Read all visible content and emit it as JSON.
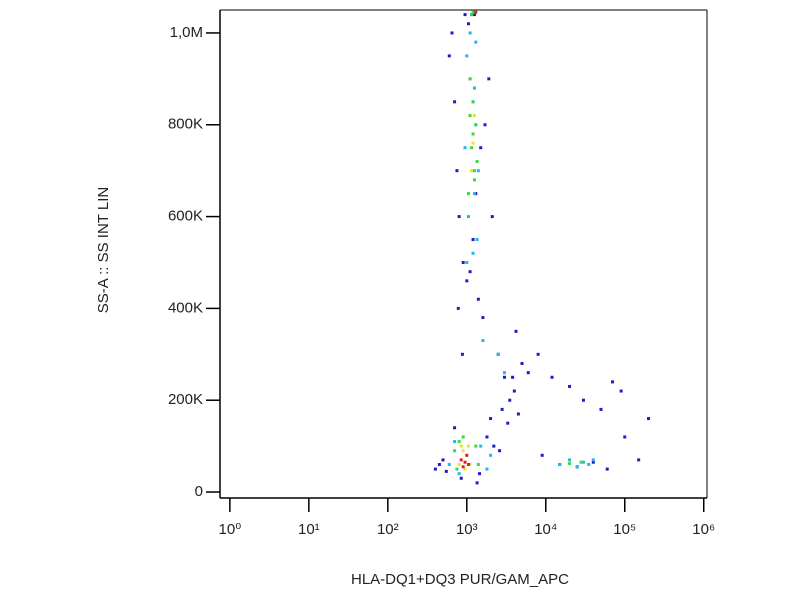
{
  "chart_data": {
    "type": "scatter",
    "x_label": "HLA-DQ1+DQ3 PUR/GAM_APC",
    "y_label": "SS-A :: SS INT LIN",
    "xscale": "log",
    "xlim": [
      0.75,
      1100000
    ],
    "ylim": [
      -13000,
      1050000
    ],
    "xticks": [
      {
        "value": 1,
        "label": "10⁰"
      },
      {
        "value": 10,
        "label": "10¹"
      },
      {
        "value": 100,
        "label": "10²"
      },
      {
        "value": 1000,
        "label": "10³"
      },
      {
        "value": 10000,
        "label": "10⁴"
      },
      {
        "value": 100000,
        "label": "10⁵"
      },
      {
        "value": 1000000,
        "label": "10⁶"
      }
    ],
    "yticks": [
      0,
      {
        "value": 200000,
        "label": "200K"
      },
      {
        "value": 400000,
        "label": "400K"
      },
      {
        "value": 600000,
        "label": "600K"
      },
      {
        "value": 800000,
        "label": "800K"
      },
      {
        "value": 1000000,
        "label": "1,0M"
      }
    ],
    "series": [
      {
        "color": "#1c1cc8",
        "x": [
          600,
          700,
          750,
          800,
          900,
          1000,
          1100,
          1200,
          1300,
          1500,
          1700,
          1900,
          2100,
          650,
          780,
          880,
          1400,
          1600,
          2500,
          3000,
          3500,
          4200,
          5000,
          2800,
          3300,
          4000,
          6000,
          8000,
          12000,
          20000,
          30000,
          50000,
          70000,
          90000,
          15000,
          25000,
          40000,
          60000,
          400,
          450,
          500,
          550,
          1800,
          2200,
          2600,
          9000,
          150000,
          200000,
          100000,
          1150,
          950,
          1250,
          1050,
          850,
          1350,
          1450,
          700,
          2000,
          3800,
          4500
        ],
        "values": [
          950000,
          850000,
          700000,
          600000,
          500000,
          460000,
          480000,
          550000,
          650000,
          750000,
          800000,
          900000,
          600000,
          1000000,
          400000,
          300000,
          420000,
          380000,
          300000,
          250000,
          200000,
          350000,
          280000,
          180000,
          150000,
          220000,
          260000,
          300000,
          250000,
          230000,
          200000,
          180000,
          240000,
          220000,
          60000,
          55000,
          65000,
          50000,
          50000,
          60000,
          70000,
          45000,
          120000,
          100000,
          90000,
          80000,
          70000,
          160000,
          120000,
          1040000,
          1040000,
          1040000,
          1020000,
          30000,
          20000,
          40000,
          140000,
          160000,
          250000,
          170000
        ]
      },
      {
        "color": "#22b8e0",
        "x": [
          1000,
          1100,
          1200,
          1300,
          1150,
          1250,
          1050,
          1350,
          950,
          1000,
          1200,
          1400,
          1100,
          1300,
          600,
          700,
          1500,
          1800,
          2000,
          800,
          15000,
          20000,
          25000,
          30000,
          35000,
          40000,
          2500,
          3000,
          1600,
          1250
        ],
        "values": [
          950000,
          900000,
          850000,
          800000,
          700000,
          650000,
          600000,
          550000,
          750000,
          500000,
          520000,
          700000,
          1000000,
          980000,
          60000,
          110000,
          100000,
          50000,
          80000,
          40000,
          60000,
          70000,
          55000,
          65000,
          60000,
          70000,
          300000,
          260000,
          330000,
          880000
        ]
      },
      {
        "color": "#3ed83e",
        "x": [
          1100,
          1200,
          1300,
          1150,
          1250,
          1050,
          1200,
          1350,
          1100,
          1250,
          700,
          800,
          1300,
          1400,
          900,
          750,
          20000,
          28000,
          1200,
          1150
        ],
        "values": [
          900000,
          850000,
          800000,
          750000,
          700000,
          650000,
          780000,
          720000,
          820000,
          680000,
          90000,
          110000,
          100000,
          60000,
          120000,
          50000,
          62000,
          65000,
          1045000,
          1040000
        ]
      },
      {
        "color": "#e8e820",
        "x": [
          1200,
          1150,
          1250,
          800,
          900,
          1000,
          1100,
          850,
          1050,
          950
        ],
        "values": [
          760000,
          700000,
          820000,
          60000,
          90000,
          80000,
          60000,
          100000,
          100000,
          50000
        ]
      },
      {
        "color": "#e02020",
        "x": [
          850,
          950,
          1000,
          900,
          1050,
          1300
        ],
        "values": [
          70000,
          65000,
          80000,
          55000,
          60000,
          1045000
        ]
      }
    ]
  }
}
